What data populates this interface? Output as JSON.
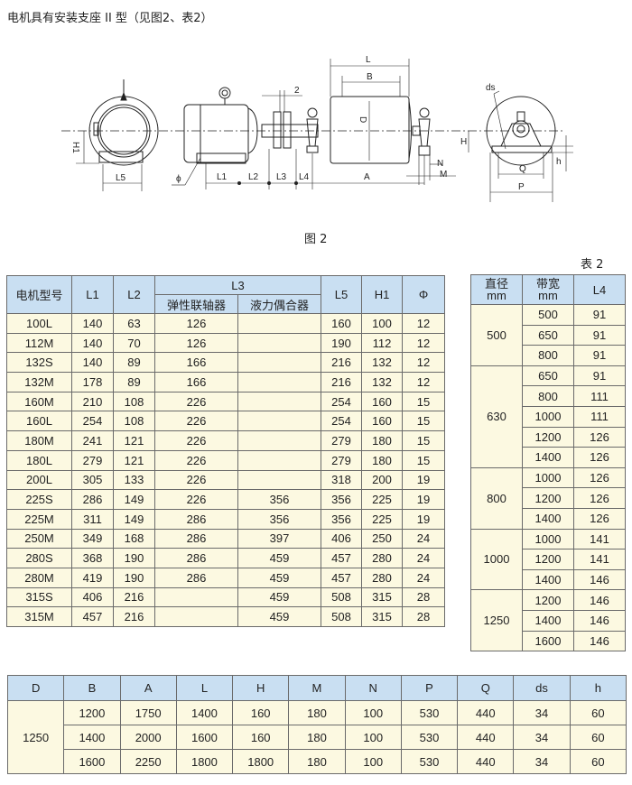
{
  "title": "电机具有安装支座 II 型（见图2、表2）",
  "figure": {
    "caption": "图 2",
    "labels": {
      "L": "L",
      "B": "B",
      "D": "D",
      "two": "2",
      "H1": "H1",
      "L5": "L5",
      "phi": "ϕ",
      "L1": "L1",
      "L2": "L2",
      "L3": "L3",
      "L4": "L4",
      "A": "A",
      "N": "N",
      "M": "M",
      "ds": "ds",
      "H": "H",
      "h": "h",
      "Q": "Q",
      "P": "P"
    }
  },
  "table_caption": "表 2",
  "motor_table": {
    "headers": {
      "model": "电机型号",
      "L1": "L1",
      "L2": "L2",
      "L3": "L3",
      "L3_elastic": "弹性联轴器",
      "L3_fluid": "液力偶合器",
      "L5": "L5",
      "H1": "H1",
      "phi": "Φ"
    },
    "rows": [
      [
        "100L",
        "140",
        "63",
        "126",
        "",
        "160",
        "100",
        "12"
      ],
      [
        "112M",
        "140",
        "70",
        "126",
        "",
        "190",
        "112",
        "12"
      ],
      [
        "132S",
        "140",
        "89",
        "166",
        "",
        "216",
        "132",
        "12"
      ],
      [
        "132M",
        "178",
        "89",
        "166",
        "",
        "216",
        "132",
        "12"
      ],
      [
        "160M",
        "210",
        "108",
        "226",
        "",
        "254",
        "160",
        "15"
      ],
      [
        "160L",
        "254",
        "108",
        "226",
        "",
        "254",
        "160",
        "15"
      ],
      [
        "180M",
        "241",
        "121",
        "226",
        "",
        "279",
        "180",
        "15"
      ],
      [
        "180L",
        "279",
        "121",
        "226",
        "",
        "279",
        "180",
        "15"
      ],
      [
        "200L",
        "305",
        "133",
        "226",
        "",
        "318",
        "200",
        "19"
      ],
      [
        "225S",
        "286",
        "149",
        "226",
        "356",
        "356",
        "225",
        "19"
      ],
      [
        "225M",
        "311",
        "149",
        "286",
        "356",
        "356",
        "225",
        "19"
      ],
      [
        "250M",
        "349",
        "168",
        "286",
        "397",
        "406",
        "250",
        "24"
      ],
      [
        "280S",
        "368",
        "190",
        "286",
        "459",
        "457",
        "280",
        "24"
      ],
      [
        "280M",
        "419",
        "190",
        "286",
        "459",
        "457",
        "280",
        "24"
      ],
      [
        "315S",
        "406",
        "216",
        "",
        "459",
        "508",
        "315",
        "28"
      ],
      [
        "315M",
        "457",
        "216",
        "",
        "459",
        "508",
        "315",
        "28"
      ]
    ]
  },
  "l4_table": {
    "headers": {
      "diameter": "直径",
      "diameter_unit": "mm",
      "belt": "带宽",
      "belt_unit": "mm",
      "L4": "L4"
    },
    "groups": [
      {
        "diameter": "500",
        "rows": [
          [
            "500",
            "91"
          ],
          [
            "650",
            "91"
          ],
          [
            "800",
            "91"
          ]
        ]
      },
      {
        "diameter": "630",
        "rows": [
          [
            "650",
            "91"
          ],
          [
            "800",
            "111"
          ],
          [
            "1000",
            "111"
          ],
          [
            "1200",
            "126"
          ],
          [
            "1400",
            "126"
          ]
        ]
      },
      {
        "diameter": "800",
        "rows": [
          [
            "1000",
            "126"
          ],
          [
            "1200",
            "126"
          ],
          [
            "1400",
            "126"
          ]
        ]
      },
      {
        "diameter": "1000",
        "rows": [
          [
            "1000",
            "141"
          ],
          [
            "1200",
            "141"
          ],
          [
            "1400",
            "146"
          ]
        ]
      },
      {
        "diameter": "1250",
        "rows": [
          [
            "1200",
            "146"
          ],
          [
            "1400",
            "146"
          ],
          [
            "1600",
            "146"
          ]
        ]
      }
    ]
  },
  "drum_table": {
    "headers": [
      "D",
      "B",
      "A",
      "L",
      "H",
      "M",
      "N",
      "P",
      "Q",
      "ds",
      "h"
    ],
    "D": "1250",
    "rows": [
      [
        "1200",
        "1750",
        "1400",
        "160",
        "180",
        "100",
        "530",
        "440",
        "34",
        "60"
      ],
      [
        "1400",
        "2000",
        "1600",
        "160",
        "180",
        "100",
        "530",
        "440",
        "34",
        "60"
      ],
      [
        "1600",
        "2250",
        "1800",
        "1800",
        "180",
        "100",
        "530",
        "440",
        "34",
        "60"
      ]
    ]
  },
  "colors": {
    "header_bg": "#c9dff2",
    "cell_bg": "#fcf9e1",
    "line": "#222222"
  }
}
